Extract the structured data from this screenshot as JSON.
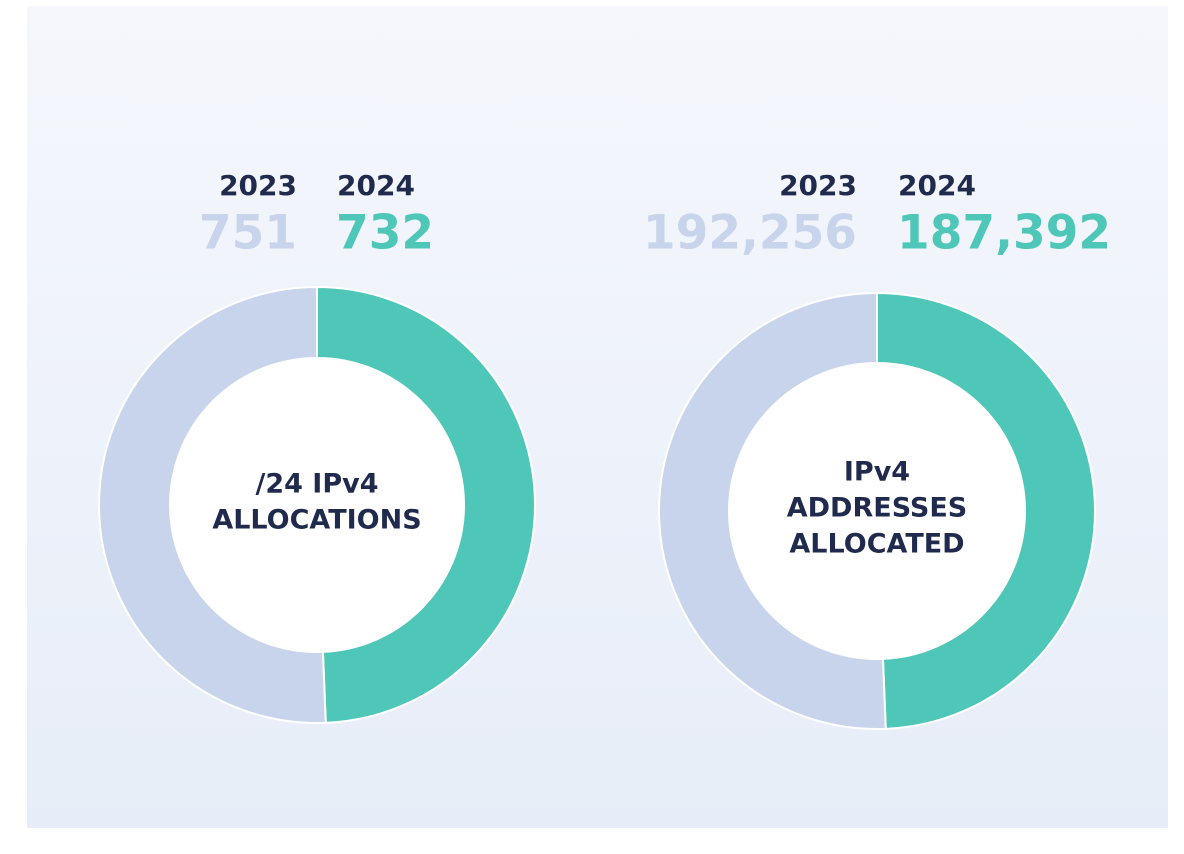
{
  "chart_data": [
    {
      "type": "donut",
      "title": [
        "/24 IPv4",
        "ALLOCATIONS"
      ],
      "categories": [
        "2023",
        "2024"
      ],
      "values": [
        751,
        732
      ],
      "colors": [
        "#c7d4ec",
        "#4fc7b8"
      ]
    },
    {
      "type": "donut",
      "title": [
        "IPv4",
        "ADDRESSES",
        "ALLOCATED"
      ],
      "categories": [
        "2023",
        "2024"
      ],
      "values": [
        192256,
        187392
      ],
      "value_labels": [
        "192,256",
        "187,392"
      ],
      "colors": [
        "#c7d4ec",
        "#4fc7b8"
      ]
    }
  ]
}
